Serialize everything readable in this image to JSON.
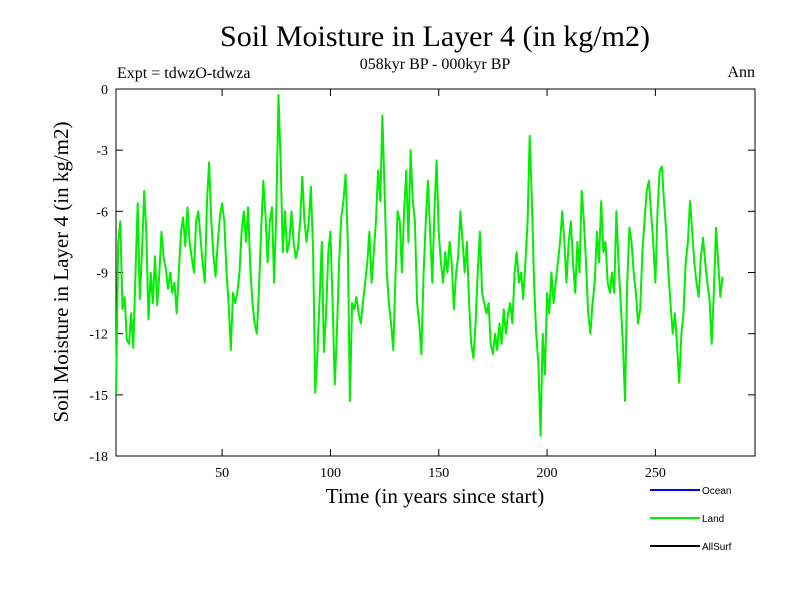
{
  "chart_data": {
    "type": "line",
    "title": "Soil Moisture in Layer 4 (in kg/m2)",
    "subtitle": "058kyr BP - 000kyr BP",
    "expt_label": "Expt = tdwzO-tdwza",
    "season_label": "Ann",
    "xlabel": "Time (in years since start)",
    "ylabel": "Soil Moisture in Layer 4 (in kg/m2)",
    "xlim": [
      1,
      296
    ],
    "ylim": [
      -18,
      0
    ],
    "x_ticks": [
      50,
      100,
      150,
      200,
      250
    ],
    "y_ticks": [
      0,
      -3,
      -6,
      -9,
      -12,
      -15,
      -18
    ],
    "grid": false,
    "legend_position": "bottom-right",
    "legend": [
      {
        "name": "Ocean",
        "color": "#0000ff"
      },
      {
        "name": "Land",
        "color": "#00ee00"
      },
      {
        "name": "AllSurf",
        "color": "#000000"
      }
    ],
    "series": [
      {
        "name": "Land",
        "color": "#00ee00",
        "x_start": 1,
        "x_step": 1,
        "values": [
          -15.0,
          -7.5,
          -6.5,
          -10.8,
          -10.2,
          -12.3,
          -12.5,
          -11.0,
          -12.7,
          -9.0,
          -5.6,
          -10.3,
          -8.0,
          -5.0,
          -7.0,
          -11.3,
          -9.0,
          -10.5,
          -8.2,
          -10.6,
          -9.1,
          -7.0,
          -8.3,
          -8.8,
          -9.8,
          -9.0,
          -10.0,
          -9.5,
          -11.0,
          -9.0,
          -7.0,
          -6.3,
          -7.7,
          -5.8,
          -7.5,
          -8.3,
          -9.0,
          -6.5,
          -6.0,
          -7.3,
          -8.5,
          -9.5,
          -5.5,
          -3.6,
          -6.5,
          -8.2,
          -9.2,
          -7.5,
          -6.2,
          -5.6,
          -6.5,
          -9.0,
          -10.5,
          -12.8,
          -10.0,
          -10.5,
          -10.0,
          -9.0,
          -7.0,
          -6.0,
          -7.5,
          -5.8,
          -8.8,
          -10.5,
          -11.5,
          -12.0,
          -9.8,
          -7.0,
          -4.5,
          -6.2,
          -8.5,
          -6.5,
          -5.8,
          -9.5,
          -6.0,
          -0.3,
          -3.5,
          -8.0,
          -6.0,
          -8.0,
          -7.5,
          -6.0,
          -7.5,
          -8.3,
          -7.8,
          -6.5,
          -4.3,
          -6.5,
          -7.5,
          -6.5,
          -4.8,
          -8.0,
          -14.9,
          -13.0,
          -10.3,
          -7.5,
          -12.9,
          -11.0,
          -8.0,
          -7.0,
          -10.5,
          -14.5,
          -12.0,
          -8.5,
          -6.3,
          -5.5,
          -4.2,
          -7.5,
          -15.3,
          -10.5,
          -10.8,
          -10.2,
          -11.0,
          -11.5,
          -10.5,
          -9.5,
          -8.5,
          -7.0,
          -9.5,
          -8.0,
          -6.5,
          -4.0,
          -5.5,
          -1.3,
          -5.0,
          -9.0,
          -10.5,
          -11.5,
          -12.8,
          -9.3,
          -6.0,
          -6.5,
          -9.0,
          -6.0,
          -4.0,
          -7.5,
          -3.0,
          -5.5,
          -6.5,
          -10.5,
          -11.5,
          -13.0,
          -9.0,
          -6.5,
          -4.5,
          -7.0,
          -9.5,
          -6.0,
          -3.5,
          -7.0,
          -8.5,
          -9.5,
          -8.0,
          -9.0,
          -7.5,
          -8.5,
          -10.8,
          -9.0,
          -8.2,
          -6.0,
          -7.5,
          -9.0,
          -7.5,
          -10.5,
          -12.5,
          -13.2,
          -11.5,
          -9.0,
          -7.0,
          -10.0,
          -10.5,
          -11.0,
          -10.5,
          -12.5,
          -13.0,
          -12.0,
          -12.8,
          -11.5,
          -12.5,
          -10.8,
          -12.0,
          -11.0,
          -10.5,
          -11.5,
          -9.0,
          -8.0,
          -9.5,
          -9.0,
          -10.3,
          -8.5,
          -6.5,
          -2.3,
          -5.5,
          -9.5,
          -12.0,
          -13.5,
          -17.0,
          -12.0,
          -14.0,
          -10.0,
          -11.0,
          -9.0,
          -10.5,
          -9.5,
          -8.5,
          -7.5,
          -6.0,
          -7.5,
          -9.5,
          -7.5,
          -6.5,
          -8.5,
          -10.0,
          -7.5,
          -9.0,
          -5.0,
          -6.5,
          -8.5,
          -11.0,
          -12.0,
          -10.5,
          -9.5,
          -7.0,
          -8.5,
          -5.5,
          -8.0,
          -7.5,
          -9.5,
          -10.0,
          -9.0,
          -10.0,
          -6.0,
          -8.5,
          -10.5,
          -12.5,
          -15.3,
          -9.5,
          -6.8,
          -7.5,
          -9.0,
          -10.0,
          -11.5,
          -10.8,
          -8.0,
          -6.5,
          -5.0,
          -4.5,
          -6.0,
          -7.5,
          -9.5,
          -6.0,
          -4.0,
          -3.8,
          -5.5,
          -7.0,
          -9.0,
          -10.5,
          -12.0,
          -11.0,
          -12.5,
          -14.4,
          -12.0,
          -11.0,
          -8.5,
          -7.5,
          -5.5,
          -7.0,
          -8.5,
          -9.5,
          -10.2,
          -8.3,
          -7.3,
          -8.5,
          -9.5,
          -10.3,
          -12.5,
          -10.0,
          -6.8,
          -8.5,
          -10.2,
          -9.2
        ]
      }
    ]
  }
}
